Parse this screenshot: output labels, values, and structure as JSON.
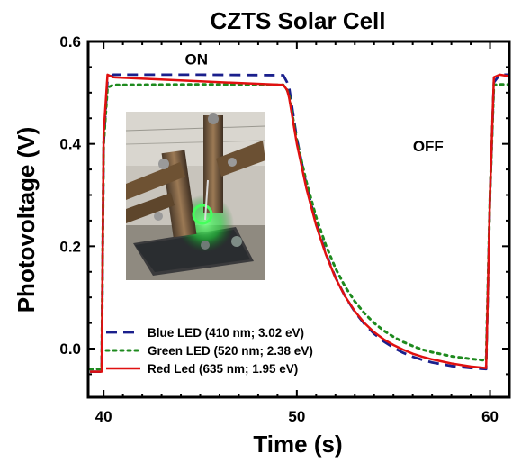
{
  "chart_data": {
    "type": "line",
    "title": "CZTS Solar Cell",
    "xlabel": "Time (s)",
    "ylabel": "Photovoltage (V)",
    "xlim": [
      39.2,
      61.0
    ],
    "ylim": [
      -0.095,
      0.6
    ],
    "xticks": [
      40,
      50,
      60
    ],
    "xtick_labels": [
      "40",
      "50",
      "60"
    ],
    "yticks": [
      0.0,
      0.2,
      0.4,
      0.6
    ],
    "ytick_labels": [
      "0.0",
      "0.2",
      "0.4",
      "0.6"
    ],
    "grid": false,
    "legend_position": "bottom-left",
    "annotations": [
      {
        "text": "ON",
        "x": 44.8,
        "y": 0.555
      },
      {
        "text": "OFF",
        "x": 56.8,
        "y": 0.385
      }
    ],
    "inset_image": "photo of CZTS solar cell device under green LED illumination with probe contacts",
    "series": [
      {
        "name": "Blue LED (410 nm; 3.02 eV)",
        "color": "#1a1f8c",
        "style": "dashed",
        "x": [
          39.3,
          39.9,
          40.0,
          40.2,
          40.5,
          45.0,
          49.3,
          49.5,
          49.6,
          50.0,
          50.5,
          51.0,
          51.5,
          52.0,
          52.5,
          53.0,
          53.5,
          54.0,
          54.5,
          55.0,
          55.5,
          56.0,
          56.5,
          57.0,
          58.0,
          59.0,
          59.8,
          60.0,
          60.2,
          60.5,
          61.0
        ],
        "y": [
          -0.045,
          -0.045,
          0.4,
          0.525,
          0.535,
          0.535,
          0.534,
          0.52,
          0.51,
          0.41,
          0.318,
          0.245,
          0.186,
          0.139,
          0.102,
          0.072,
          0.048,
          0.029,
          0.014,
          0.002,
          -0.008,
          -0.016,
          -0.022,
          -0.027,
          -0.034,
          -0.038,
          -0.04,
          0.3,
          0.52,
          0.535,
          0.535
        ]
      },
      {
        "name": "Green LED (520 nm; 2.38 eV)",
        "color": "#1e8a1e",
        "style": "dotted",
        "x": [
          39.3,
          39.9,
          40.0,
          40.2,
          40.5,
          45.0,
          49.3,
          49.5,
          49.6,
          50.0,
          50.5,
          51.0,
          51.5,
          52.0,
          52.5,
          53.0,
          53.5,
          54.0,
          54.5,
          55.0,
          55.5,
          56.0,
          56.5,
          57.0,
          58.0,
          59.0,
          59.8,
          60.0,
          60.2,
          60.5,
          61.0
        ],
        "y": [
          -0.04,
          -0.04,
          0.4,
          0.51,
          0.515,
          0.516,
          0.515,
          0.505,
          0.495,
          0.405,
          0.325,
          0.257,
          0.202,
          0.157,
          0.121,
          0.092,
          0.069,
          0.05,
          0.035,
          0.023,
          0.013,
          0.005,
          -0.002,
          -0.007,
          -0.015,
          -0.02,
          -0.023,
          0.3,
          0.515,
          0.516,
          0.516
        ]
      },
      {
        "name": "Red Led (635 nm; 1.95 eV)",
        "color": "#e01010",
        "style": "solid",
        "x": [
          39.3,
          39.9,
          40.0,
          40.2,
          40.5,
          45.0,
          49.3,
          49.5,
          49.6,
          50.0,
          50.5,
          51.0,
          51.5,
          52.0,
          52.5,
          53.0,
          53.5,
          54.0,
          54.5,
          55.0,
          55.5,
          56.0,
          56.5,
          57.0,
          58.0,
          59.0,
          59.8,
          60.0,
          60.2,
          60.5,
          61.0
        ],
        "y": [
          -0.045,
          -0.045,
          0.42,
          0.535,
          0.53,
          0.522,
          0.515,
          0.505,
          0.49,
          0.4,
          0.312,
          0.241,
          0.184,
          0.138,
          0.102,
          0.073,
          0.05,
          0.032,
          0.018,
          0.007,
          -0.002,
          -0.01,
          -0.016,
          -0.021,
          -0.029,
          -0.035,
          -0.038,
          0.3,
          0.53,
          0.535,
          0.532
        ]
      }
    ]
  }
}
